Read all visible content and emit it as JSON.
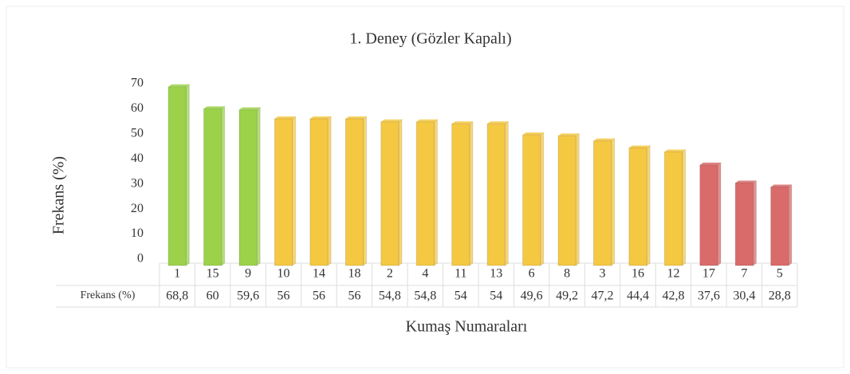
{
  "chart_data": {
    "type": "bar",
    "title": "1. Deney (Gözler Kapalı)",
    "y_label": "Frekans (%)",
    "x_label": "Kumaş Numaraları",
    "table_row_label": "Frekans (%)",
    "categories": [
      "1",
      "15",
      "9",
      "10",
      "14",
      "18",
      "2",
      "4",
      "11",
      "13",
      "6",
      "8",
      "3",
      "16",
      "12",
      "17",
      "7",
      "5"
    ],
    "values": [
      68.8,
      60,
      59.6,
      56,
      56,
      56,
      54.8,
      54.8,
      54,
      54,
      49.6,
      49.2,
      47.2,
      44.4,
      42.8,
      37.6,
      30.4,
      28.8
    ],
    "value_labels": [
      "68,8",
      "60",
      "59,6",
      "56",
      "56",
      "56",
      "54,8",
      "54,8",
      "54",
      "54",
      "49,6",
      "49,2",
      "47,2",
      "44,4",
      "42,8",
      "37,6",
      "30,4",
      "28,8"
    ],
    "colors": [
      "#9bd24a",
      "#9bd24a",
      "#9bd24a",
      "#f5c842",
      "#f5c842",
      "#f5c842",
      "#f5c842",
      "#f5c842",
      "#f5c842",
      "#f5c842",
      "#f5c842",
      "#f5c842",
      "#f5c842",
      "#f5c842",
      "#f5c842",
      "#d96b6b",
      "#d96b6b",
      "#d96b6b"
    ],
    "ylim": [
      0,
      70
    ],
    "yticks": [
      0,
      10,
      20,
      30,
      40,
      50,
      60,
      70
    ],
    "grid": false
  }
}
